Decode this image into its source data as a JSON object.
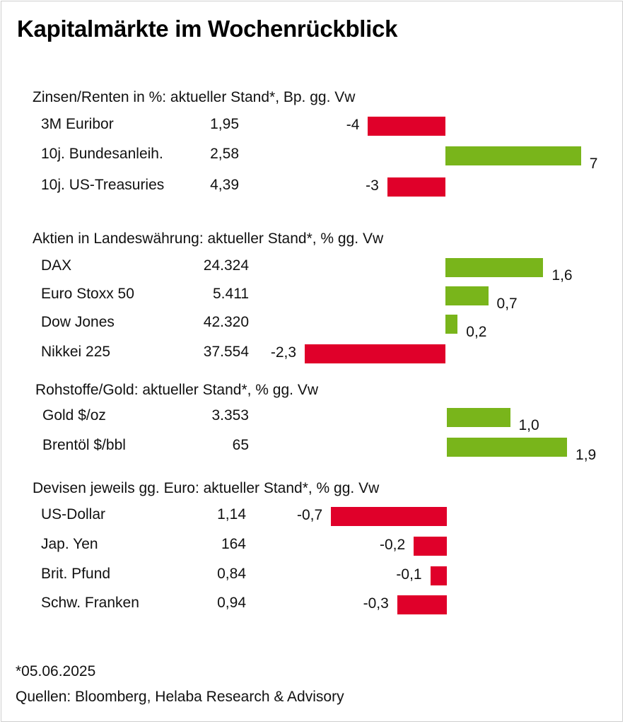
{
  "title": "Kapitalmärkte im Wochenrückblick",
  "colors": {
    "positive": "#79b51b",
    "negative": "#e0002a"
  },
  "chart_data": [
    {
      "type": "bar",
      "orientation": "horizontal",
      "title": "Zinsen/Renten in %: aktueller Stand*, Bp. gg. Vw",
      "rows": [
        {
          "label": "3M Euribor",
          "level": "1,95",
          "change": -4,
          "change_label": "-4"
        },
        {
          "label": "10j. Bundesanleih.",
          "level": "2,58",
          "change": 7,
          "change_label": "7"
        },
        {
          "label": "10j. US-Treasuries",
          "level": "4,39",
          "change": -3,
          "change_label": "-3"
        }
      ]
    },
    {
      "type": "bar",
      "orientation": "horizontal",
      "title": "Aktien in Landeswährung: aktueller Stand*, % gg. Vw",
      "rows": [
        {
          "label": "DAX",
          "level": "24.324",
          "change": 1.6,
          "change_label": "1,6"
        },
        {
          "label": "Euro Stoxx 50",
          "level": "5.411",
          "change": 0.7,
          "change_label": "0,7"
        },
        {
          "label": "Dow Jones",
          "level": "42.320",
          "change": 0.2,
          "change_label": "0,2"
        },
        {
          "label": "Nikkei 225",
          "level": "37.554",
          "change": -2.3,
          "change_label": "-2,3"
        }
      ]
    },
    {
      "type": "bar",
      "orientation": "horizontal",
      "title": "Rohstoffe/Gold: aktueller Stand*, % gg. Vw",
      "rows": [
        {
          "label": "Gold $/oz",
          "level": "3.353",
          "change": 1.0,
          "change_label": "1,0"
        },
        {
          "label": "Brentöl $/bbl",
          "level": "65",
          "change": 1.9,
          "change_label": "1,9"
        }
      ]
    },
    {
      "type": "bar",
      "orientation": "horizontal",
      "title": "Devisen jeweils gg. Euro: aktueller Stand*, % gg. Vw",
      "rows": [
        {
          "label": "US-Dollar",
          "level": "1,14",
          "change": -0.7,
          "change_label": "-0,7"
        },
        {
          "label": "Jap. Yen",
          "level": "164",
          "change": -0.2,
          "change_label": "-0,2"
        },
        {
          "label": "Brit. Pfund",
          "level": "0,84",
          "change": -0.1,
          "change_label": "-0,1"
        },
        {
          "label": "Schw. Franken",
          "level": "0,94",
          "change": -0.3,
          "change_label": "-0,3"
        }
      ]
    }
  ],
  "footnote": {
    "date": "*05.06.2025",
    "source": "Quellen: Bloomberg, Helaba Research & Advisory"
  }
}
